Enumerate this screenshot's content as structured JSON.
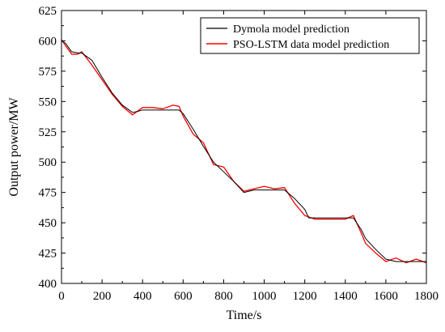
{
  "chart_data": {
    "type": "line",
    "title": "",
    "xlabel": "Time/s",
    "ylabel": "Output power/MW",
    "xlim": [
      0,
      1800
    ],
    "ylim": [
      400,
      625
    ],
    "xticks": [
      "0",
      "200",
      "400",
      "600",
      "800",
      "1000",
      "1200",
      "1400",
      "1600",
      "1800"
    ],
    "yticks": [
      "400",
      "425",
      "450",
      "475",
      "500",
      "525",
      "550",
      "575",
      "600",
      "625"
    ],
    "grid": false,
    "legend_position": "top-right",
    "series": [
      {
        "name": "Dymola model prediction",
        "color": "#000000",
        "x": [
          0,
          20,
          50,
          80,
          100,
          150,
          200,
          250,
          300,
          350,
          380,
          400,
          450,
          500,
          550,
          580,
          600,
          650,
          700,
          750,
          800,
          850,
          900,
          950,
          1000,
          1050,
          1100,
          1150,
          1200,
          1220,
          1250,
          1300,
          1350,
          1400,
          1440,
          1480,
          1500,
          1550,
          1600,
          1650,
          1680,
          1700,
          1750,
          1800
        ],
        "y": [
          600,
          598,
          591,
          590,
          590,
          584,
          570,
          557,
          547,
          541,
          542,
          543,
          543,
          543,
          543,
          543,
          540,
          527,
          513,
          500,
          492,
          484,
          475,
          477,
          477,
          477,
          477,
          470,
          461,
          454,
          454,
          454,
          454,
          454,
          454,
          444,
          437,
          428,
          420,
          418,
          418,
          418,
          418,
          418
        ]
      },
      {
        "name": "PSO-LSTM data model prediction",
        "color": "#ff0000",
        "x": [
          0,
          20,
          50,
          80,
          100,
          150,
          200,
          250,
          300,
          350,
          400,
          450,
          500,
          550,
          580,
          600,
          650,
          700,
          750,
          800,
          850,
          900,
          950,
          1000,
          1050,
          1100,
          1150,
          1200,
          1250,
          1300,
          1350,
          1400,
          1440,
          1480,
          1500,
          1550,
          1600,
          1650,
          1700,
          1750,
          1800
        ],
        "y": [
          601,
          596,
          589,
          589,
          591,
          580,
          568,
          556,
          546,
          539,
          545,
          545,
          544,
          547,
          546,
          538,
          523,
          516,
          498,
          496,
          484,
          476,
          478,
          480,
          478,
          479,
          466,
          456,
          453,
          453,
          453,
          453,
          456,
          441,
          433,
          425,
          418,
          421,
          417,
          420,
          417
        ]
      }
    ]
  }
}
